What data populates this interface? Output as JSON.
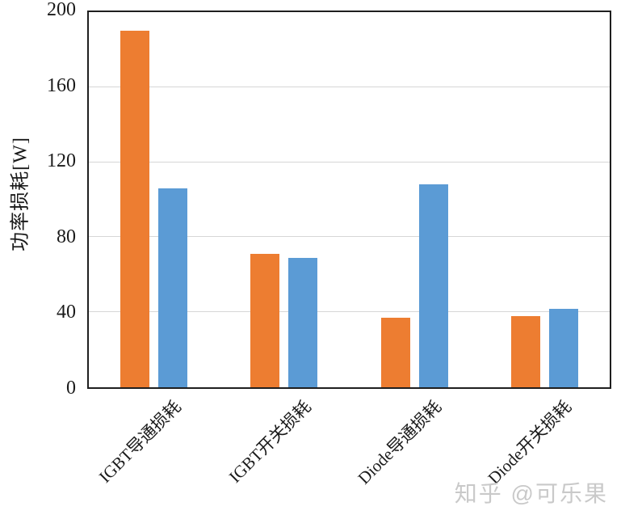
{
  "chart_data": {
    "type": "bar",
    "title": "",
    "categories": [
      "IGBT导通损耗",
      "IGBT开关损耗",
      "Diode导通损耗",
      "Diode开关损耗"
    ],
    "series": [
      {
        "name": "series-1",
        "color": "#ED7D31",
        "values": [
          190,
          71,
          37,
          38
        ]
      },
      {
        "name": "series-2",
        "color": "#5B9BD5",
        "values": [
          106,
          69,
          108,
          42
        ]
      }
    ],
    "xlabel": "",
    "ylabel": "功率损耗[W]",
    "ylim": [
      0,
      200
    ],
    "yticks": [
      0,
      40,
      80,
      120,
      160,
      200
    ],
    "grid": "horizontal",
    "legend": "none",
    "plot_border": true,
    "gridline_color": "#d6d6d6",
    "axis_color": "#1f1f1f"
  },
  "watermark": {
    "text": "知乎 @可乐果",
    "color": "#c9c9c9"
  }
}
